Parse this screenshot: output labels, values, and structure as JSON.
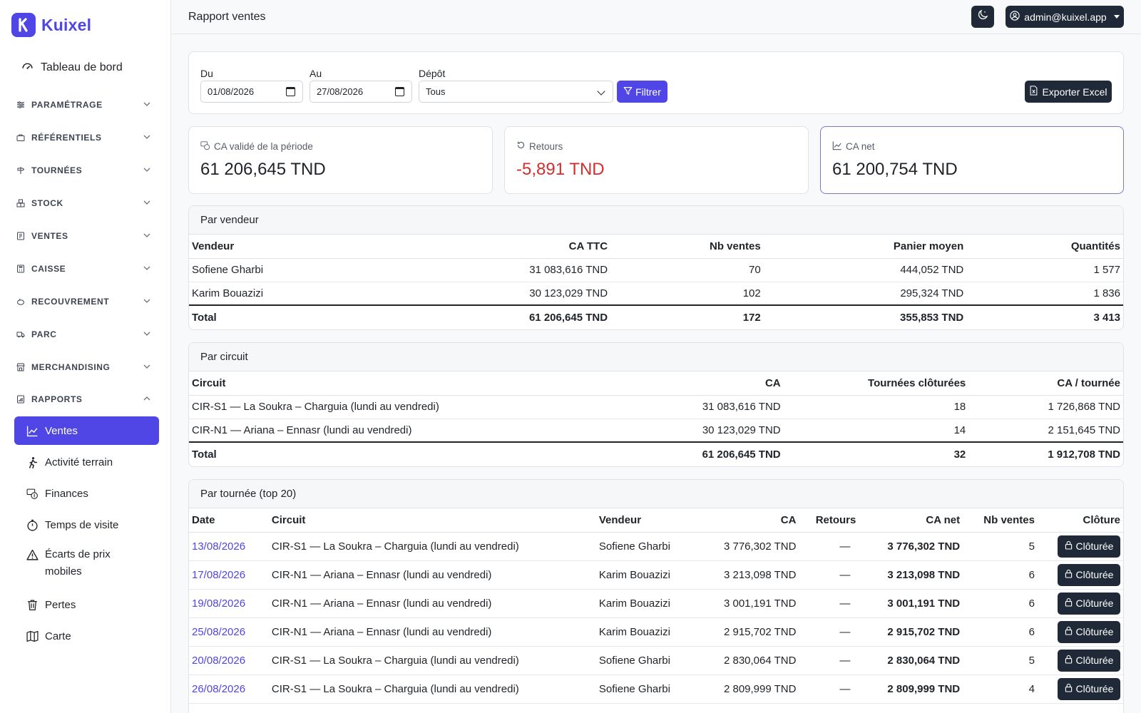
{
  "brand": {
    "name": "Kuixel"
  },
  "sidebar": {
    "dashboard": "Tableau de bord",
    "sections": [
      {
        "label": "PARAMÉTRAGE",
        "icon": "sliders-icon"
      },
      {
        "label": "RÉFÉRENTIELS",
        "icon": "briefcase-icon"
      },
      {
        "label": "TOURNÉES",
        "icon": "signpost-icon"
      },
      {
        "label": "STOCK",
        "icon": "boxes-icon"
      },
      {
        "label": "VENTES",
        "icon": "receipt-icon"
      },
      {
        "label": "CAISSE",
        "icon": "calculator-icon"
      },
      {
        "label": "RECOUVREMENT",
        "icon": "piggy-bank-icon"
      },
      {
        "label": "PARC",
        "icon": "truck-icon"
      },
      {
        "label": "MERCHANDISING",
        "icon": "shop-icon"
      },
      {
        "label": "RAPPORTS",
        "icon": "report-icon"
      }
    ],
    "rapports_items": [
      {
        "label": "Ventes",
        "icon": "chart-line-icon"
      },
      {
        "label": "Activité terrain",
        "icon": "walking-icon"
      },
      {
        "label": "Finances",
        "icon": "cash-coin-icon"
      },
      {
        "label": "Temps de visite",
        "icon": "stopwatch-icon"
      },
      {
        "label": "Écarts de prix mobiles",
        "icon": "warning-icon"
      },
      {
        "label": "Pertes",
        "icon": "trash-icon"
      },
      {
        "label": "Carte",
        "icon": "map-icon"
      }
    ]
  },
  "topbar": {
    "title": "Rapport ventes",
    "user": "admin@kuixel.app"
  },
  "filters": {
    "from_label": "Du",
    "from_value": "01/08/2026",
    "to_label": "Au",
    "to_value": "27/08/2026",
    "depot_label": "Dépôt",
    "depot_value": "Tous",
    "filter_button": "Filtrer",
    "export_button": "Exporter Excel"
  },
  "kpis": {
    "ca_valide_label": "CA validé de la période",
    "ca_valide_value": "61 206,645 TND",
    "retours_label": "Retours",
    "retours_value": "-5,891 TND",
    "ca_net_label": "CA net",
    "ca_net_value": "61 200,754 TND"
  },
  "par_vendeur": {
    "title": "Par vendeur",
    "headers": [
      "Vendeur",
      "CA TTC",
      "Nb ventes",
      "Panier moyen",
      "Quantités"
    ],
    "rows": [
      [
        "Sofiene Gharbi",
        "31 083,616 TND",
        "70",
        "444,052 TND",
        "1 577"
      ],
      [
        "Karim Bouazizi",
        "30 123,029 TND",
        "102",
        "295,324 TND",
        "1 836"
      ]
    ],
    "total": [
      "Total",
      "61 206,645 TND",
      "172",
      "355,853 TND",
      "3 413"
    ]
  },
  "par_circuit": {
    "title": "Par circuit",
    "headers": [
      "Circuit",
      "CA",
      "Tournées clôturées",
      "CA / tournée"
    ],
    "rows": [
      [
        "CIR-S1 — La Soukra – Charguia (lundi au vendredi)",
        "31 083,616 TND",
        "18",
        "1 726,868 TND"
      ],
      [
        "CIR-N1 — Ariana – Ennasr (lundi au vendredi)",
        "30 123,029 TND",
        "14",
        "2 151,645 TND"
      ]
    ],
    "total": [
      "Total",
      "61 206,645 TND",
      "32",
      "1 912,708 TND"
    ]
  },
  "par_tournee": {
    "title": "Par tournée (top 20)",
    "headers": [
      "Date",
      "Circuit",
      "Vendeur",
      "CA",
      "Retours",
      "CA net",
      "Nb ventes",
      "Clôture"
    ],
    "clot_label": "Clôturée",
    "rows": [
      [
        "13/08/2026",
        "CIR-S1 — La Soukra – Charguia (lundi au vendredi)",
        "Sofiene Gharbi",
        "3 776,302 TND",
        "—",
        "3 776,302 TND",
        "5"
      ],
      [
        "17/08/2026",
        "CIR-N1 — Ariana – Ennasr (lundi au vendredi)",
        "Karim Bouazizi",
        "3 213,098 TND",
        "—",
        "3 213,098 TND",
        "6"
      ],
      [
        "19/08/2026",
        "CIR-N1 — Ariana – Ennasr (lundi au vendredi)",
        "Karim Bouazizi",
        "3 001,191 TND",
        "—",
        "3 001,191 TND",
        "6"
      ],
      [
        "25/08/2026",
        "CIR-N1 — Ariana – Ennasr (lundi au vendredi)",
        "Karim Bouazizi",
        "2 915,702 TND",
        "—",
        "2 915,702 TND",
        "6"
      ],
      [
        "20/08/2026",
        "CIR-S1 — La Soukra – Charguia (lundi au vendredi)",
        "Sofiene Gharbi",
        "2 830,064 TND",
        "—",
        "2 830,064 TND",
        "5"
      ],
      [
        "26/08/2026",
        "CIR-S1 — La Soukra – Charguia (lundi au vendredi)",
        "Sofiene Gharbi",
        "2 809,999 TND",
        "—",
        "2 809,999 TND",
        "4"
      ]
    ]
  },
  "colors": {
    "accent": "#4f46e5",
    "dark": "#1f2937",
    "negative": "#d32f2f"
  }
}
